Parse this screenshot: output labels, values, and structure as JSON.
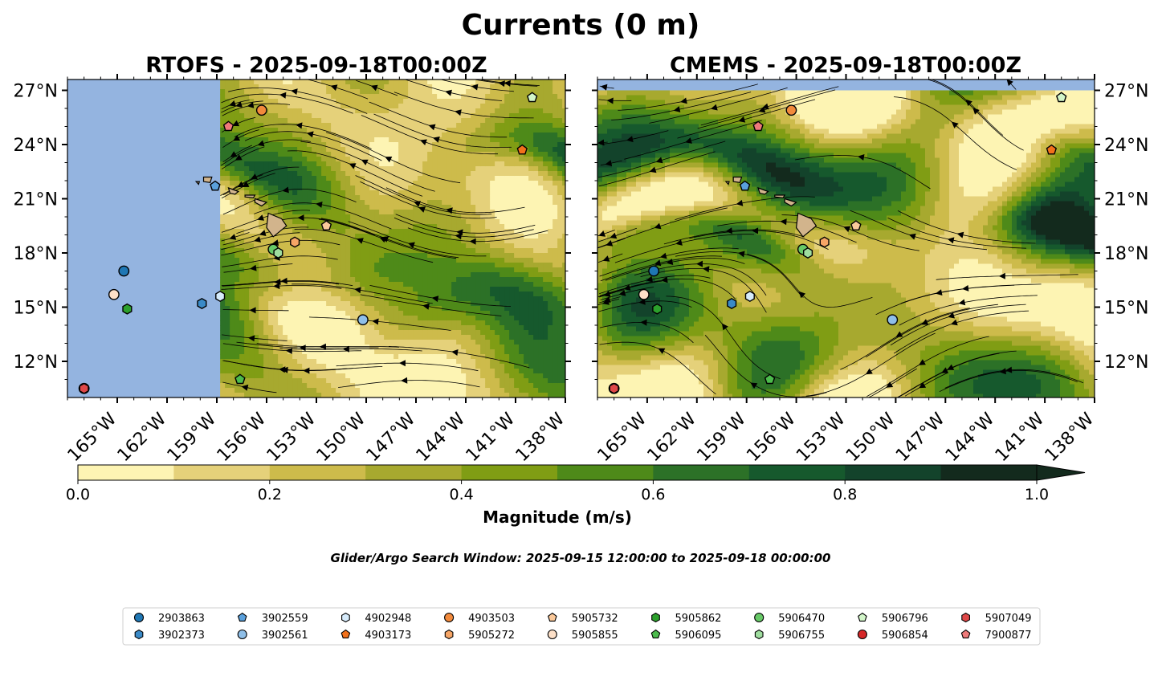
{
  "chart_data": {
    "type": "map",
    "title": "Currents (0 m)",
    "variable": "Magnitude (m/s)",
    "search_window": "Glider/Argo Search Window: 2025-09-15 12:00:00 to 2025-09-18 00:00:00",
    "lon_range": [
      -168,
      -138
    ],
    "lat_range": [
      10,
      27.6
    ],
    "lon_ticks": [
      -165,
      -162,
      -159,
      -156,
      -153,
      -150,
      -147,
      -144,
      -141,
      -138
    ],
    "lon_tick_labels": [
      "165°W",
      "162°W",
      "159°W",
      "156°W",
      "153°W",
      "150°W",
      "147°W",
      "144°W",
      "141°W",
      "138°W"
    ],
    "lat_ticks": [
      12,
      15,
      18,
      21,
      24,
      27
    ],
    "lat_tick_labels": [
      "12°N",
      "15°N",
      "18°N",
      "21°N",
      "24°N",
      "27°N"
    ],
    "panels": [
      {
        "title": "RTOFS - 2025-09-18T00:00Z",
        "model": "RTOFS",
        "data_lon_min": -158.8
      },
      {
        "title": "CMEMS - 2025-09-18T00:00Z",
        "model": "CMEMS",
        "data_lon_min": -168
      }
    ],
    "colorbar": {
      "label": "Magnitude (m/s)",
      "levels": [
        0,
        0.1,
        0.2,
        0.3,
        0.4,
        0.5,
        0.6,
        0.7,
        0.8,
        0.9,
        1.0
      ],
      "colors": [
        "#fdf4b3",
        "#e5d17a",
        "#cdbb4b",
        "#a7a92f",
        "#809d14",
        "#4e8a19",
        "#2c7127",
        "#16592d",
        "#13432b",
        "#132a1d"
      ],
      "ticks": [
        0.0,
        0.2,
        0.4,
        0.6,
        0.8,
        1.0
      ],
      "tick_labels": [
        "0.0",
        "0.2",
        "0.4",
        "0.6",
        "0.8",
        "1.0"
      ],
      "extend": "max"
    },
    "floats": [
      {
        "id": "2903863",
        "marker": "circle",
        "color": "#1f77b4",
        "lon": -164.6,
        "lat": 17.0
      },
      {
        "id": "3902373",
        "marker": "hexagon",
        "color": "#3a8ac7",
        "lon": -159.9,
        "lat": 15.2
      },
      {
        "id": "3902559",
        "marker": "pentagon",
        "color": "#5aa0dc",
        "lon": -159.1,
        "lat": 21.7
      },
      {
        "id": "3902561",
        "marker": "circle",
        "color": "#8fbfe8",
        "lon": -150.2,
        "lat": 14.3
      },
      {
        "id": "4902948",
        "marker": "hexagon",
        "color": "#d6ebfb",
        "lon": -158.8,
        "lat": 15.6
      },
      {
        "id": "4903173",
        "marker": "pentagon",
        "color": "#f2711b",
        "lon": -140.6,
        "lat": 23.7
      },
      {
        "id": "4903503",
        "marker": "circle",
        "color": "#f28a3c",
        "lon": -156.3,
        "lat": 25.9
      },
      {
        "id": "5905272",
        "marker": "hexagon",
        "color": "#f6a566",
        "lon": -154.3,
        "lat": 18.6
      },
      {
        "id": "5905732",
        "marker": "pentagon",
        "color": "#fbc99a",
        "lon": -152.4,
        "lat": 19.5
      },
      {
        "id": "5905855",
        "marker": "circle",
        "color": "#fde0c8",
        "lon": -165.2,
        "lat": 15.7
      },
      {
        "id": "5905862",
        "marker": "hexagon",
        "color": "#2ca02c",
        "lon": -164.4,
        "lat": 14.9
      },
      {
        "id": "5906095",
        "marker": "pentagon",
        "color": "#4cbb4c",
        "lon": -157.6,
        "lat": 11.0
      },
      {
        "id": "5906470",
        "marker": "circle",
        "color": "#67c967",
        "lon": -155.6,
        "lat": 18.2
      },
      {
        "id": "5906755",
        "marker": "hexagon",
        "color": "#9fdd9f",
        "lon": -155.3,
        "lat": 18.0
      },
      {
        "id": "5906796",
        "marker": "pentagon",
        "color": "#d2f5c9",
        "lon": -140.0,
        "lat": 26.6
      },
      {
        "id": "5906854",
        "marker": "circle",
        "color": "#d62728",
        "lon": -167.0,
        "lat": 10.5
      },
      {
        "id": "5907049",
        "marker": "hexagon",
        "color": "#df4848",
        "lon": -167.0,
        "lat": 10.5
      },
      {
        "id": "7900877",
        "marker": "pentagon",
        "color": "#ee7a7a",
        "lon": -158.3,
        "lat": 25.0
      }
    ],
    "legend_columns": [
      [
        "2903863",
        "3902373"
      ],
      [
        "3902559",
        "3902561"
      ],
      [
        "4902948",
        "4903173"
      ],
      [
        "4903503",
        "5905272"
      ],
      [
        "5905732",
        "5905855"
      ],
      [
        "5905862",
        "5906095"
      ],
      [
        "5906470",
        "5906755"
      ],
      [
        "5906796",
        "5906854"
      ],
      [
        "5907049",
        "7900877"
      ]
    ],
    "land_color": "#d2b48c",
    "ocean_color": "#94b4e0",
    "streamline_color": "#000000"
  }
}
